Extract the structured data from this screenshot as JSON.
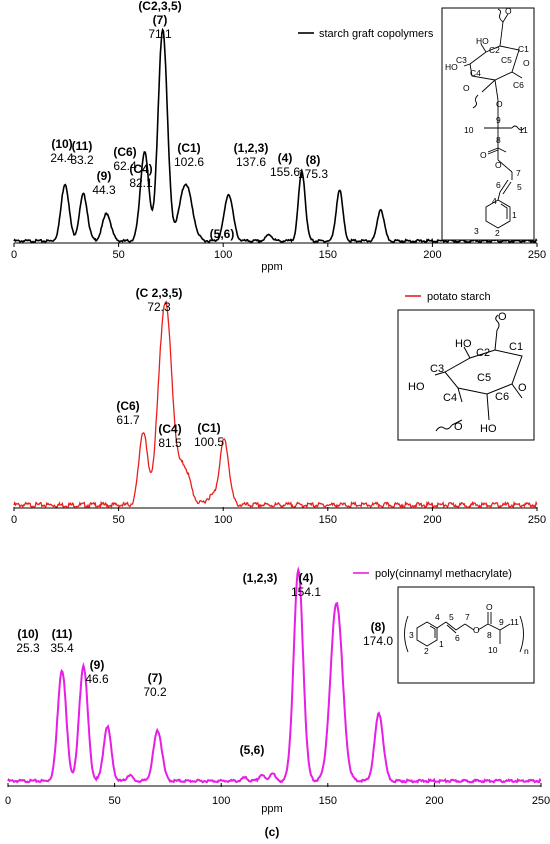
{
  "chart_data": [
    {
      "type": "line",
      "xlabel": "ppm",
      "xlim": [
        0,
        250
      ],
      "xticks": [
        "0",
        "50",
        "100",
        "150",
        "200",
        "250"
      ],
      "series": [
        {
          "name": "starch graft copolymers",
          "color": "#000000",
          "peaks": [
            {
              "x": 24.4,
              "h": 0.27,
              "w": 1.9
            },
            {
              "x": 33.2,
              "h": 0.22,
              "w": 1.9
            },
            {
              "x": 44.3,
              "h": 0.13,
              "w": 2.0
            },
            {
              "x": 62.4,
              "h": 0.42,
              "w": 2.0
            },
            {
              "x": 71.1,
              "h": 1.0,
              "w": 2.2
            },
            {
              "x": 82.1,
              "h": 0.27,
              "w": 3.0
            },
            {
              "x": 102.6,
              "h": 0.22,
              "w": 2.1
            },
            {
              "x": 122.0,
              "h": 0.03,
              "w": 1.5
            },
            {
              "x": 137.6,
              "h": 0.33,
              "w": 1.6
            },
            {
              "x": 155.6,
              "h": 0.24,
              "w": 1.6
            },
            {
              "x": 175.3,
              "h": 0.15,
              "w": 1.6
            }
          ]
        }
      ],
      "annotations": [
        {
          "label": "(C2,3,5)",
          "sub": "(7)",
          "value": "71.1",
          "x": 71.1
        },
        {
          "label": "(10)",
          "value": "24.4",
          "x": 24.4
        },
        {
          "label": "(11)",
          "value": "33.2",
          "x": 33.2
        },
        {
          "label": "(9)",
          "value": "44.3",
          "x": 44.3
        },
        {
          "label": "(C6)",
          "value": "62.4",
          "x": 62.4
        },
        {
          "label": "(C4)",
          "value": "82.1",
          "x": 82.1
        },
        {
          "label": "(C1)",
          "value": "102.6",
          "x": 102.6
        },
        {
          "label": "(5,6)",
          "value": "",
          "x": 120
        },
        {
          "label": "(1,2,3)",
          "value": "137.6",
          "x": 137.6
        },
        {
          "label": "(4)",
          "value": "155.6",
          "x": 155.6
        },
        {
          "label": "(8)",
          "value": "175.3",
          "x": 175.3
        }
      ]
    },
    {
      "type": "line",
      "xlabel": "",
      "xlim": [
        0,
        250
      ],
      "xticks": [
        "0",
        "50",
        "100",
        "150",
        "200",
        "250"
      ],
      "series": [
        {
          "name": "potato starch",
          "color": "#e8201c",
          "peaks": [
            {
              "x": 61.7,
              "h": 0.36,
              "w": 2.0
            },
            {
              "x": 72.3,
              "h": 1.0,
              "w": 3.2
            },
            {
              "x": 81.5,
              "h": 0.18,
              "w": 2.8
            },
            {
              "x": 94.2,
              "h": 0.04,
              "w": 2.5
            },
            {
              "x": 100.5,
              "h": 0.32,
              "w": 2.2
            }
          ]
        }
      ],
      "annotations": [
        {
          "label": "(C 2,3,5)",
          "value": "72.3",
          "x": 72.3
        },
        {
          "label": "(C6)",
          "value": "61.7",
          "x": 61.7
        },
        {
          "label": "(C4)",
          "value": "81.5",
          "x": 81.5
        },
        {
          "label": "",
          "value": "94.2",
          "x": 94.2
        },
        {
          "label": "(C1)",
          "value": "100.5",
          "x": 100.5
        }
      ]
    },
    {
      "type": "line",
      "xlabel": "ppm",
      "xlim": [
        0,
        250
      ],
      "xticks": [
        "0",
        "50",
        "100",
        "150",
        "200",
        "250"
      ],
      "series": [
        {
          "name": "poly(cinnamyl methacrylate)",
          "color": "#e61ee6",
          "peaks": [
            {
              "x": 25.3,
              "h": 0.53,
              "w": 2.0
            },
            {
              "x": 35.4,
              "h": 0.55,
              "w": 2.0
            },
            {
              "x": 46.6,
              "h": 0.26,
              "w": 1.8
            },
            {
              "x": 57.0,
              "h": 0.03,
              "w": 1.2
            },
            {
              "x": 70.2,
              "h": 0.24,
              "w": 2.0
            },
            {
              "x": 111.0,
              "h": 0.015,
              "w": 1.2
            },
            {
              "x": 119.0,
              "h": 0.03,
              "w": 1.2
            },
            {
              "x": 124.0,
              "h": 0.04,
              "w": 1.2
            },
            {
              "x": 136.2,
              "h": 1.0,
              "w": 2.2
            },
            {
              "x": 154.1,
              "h": 0.85,
              "w": 2.8
            },
            {
              "x": 174.0,
              "h": 0.32,
              "w": 2.0
            }
          ]
        }
      ],
      "annotations": [
        {
          "label": "",
          "value": "136.2",
          "x": 136.2
        },
        {
          "label": "(1,2,3)",
          "value": "",
          "x": 134.0
        },
        {
          "label": "(4)",
          "value": "154.1",
          "x": 154.1
        },
        {
          "label": "(8)",
          "value": "174.0",
          "x": 174.0
        },
        {
          "label": "(10)",
          "value": "25.3",
          "x": 25.3
        },
        {
          "label": "(11)",
          "value": "35.4",
          "x": 35.4
        },
        {
          "label": "(9)",
          "value": "46.6",
          "x": 46.6
        },
        {
          "label": "(7)",
          "value": "70.2",
          "x": 70.2
        },
        {
          "label": "(5,6)",
          "value": "",
          "x": 122.0
        }
      ]
    }
  ],
  "figure_label": "(c)",
  "structures": {
    "graft": [
      "O",
      "HO",
      "C2",
      "C1",
      "C3",
      "C4",
      "C5",
      "HO",
      "O",
      "C6",
      "O",
      "O",
      "9",
      "10",
      "11",
      "8",
      "O",
      "O",
      "7",
      "6",
      "5",
      "4",
      "1",
      "3",
      "2"
    ],
    "starch": [
      "O",
      "HO",
      "C2",
      "C1",
      "C3",
      "HO",
      "C5",
      "O",
      "C4",
      "C6",
      "O",
      "HO"
    ],
    "pcm": [
      "4",
      "5",
      "7",
      "O",
      "9",
      "11",
      "3",
      "6",
      "O",
      "8",
      "1",
      "10",
      "2",
      "n"
    ]
  }
}
